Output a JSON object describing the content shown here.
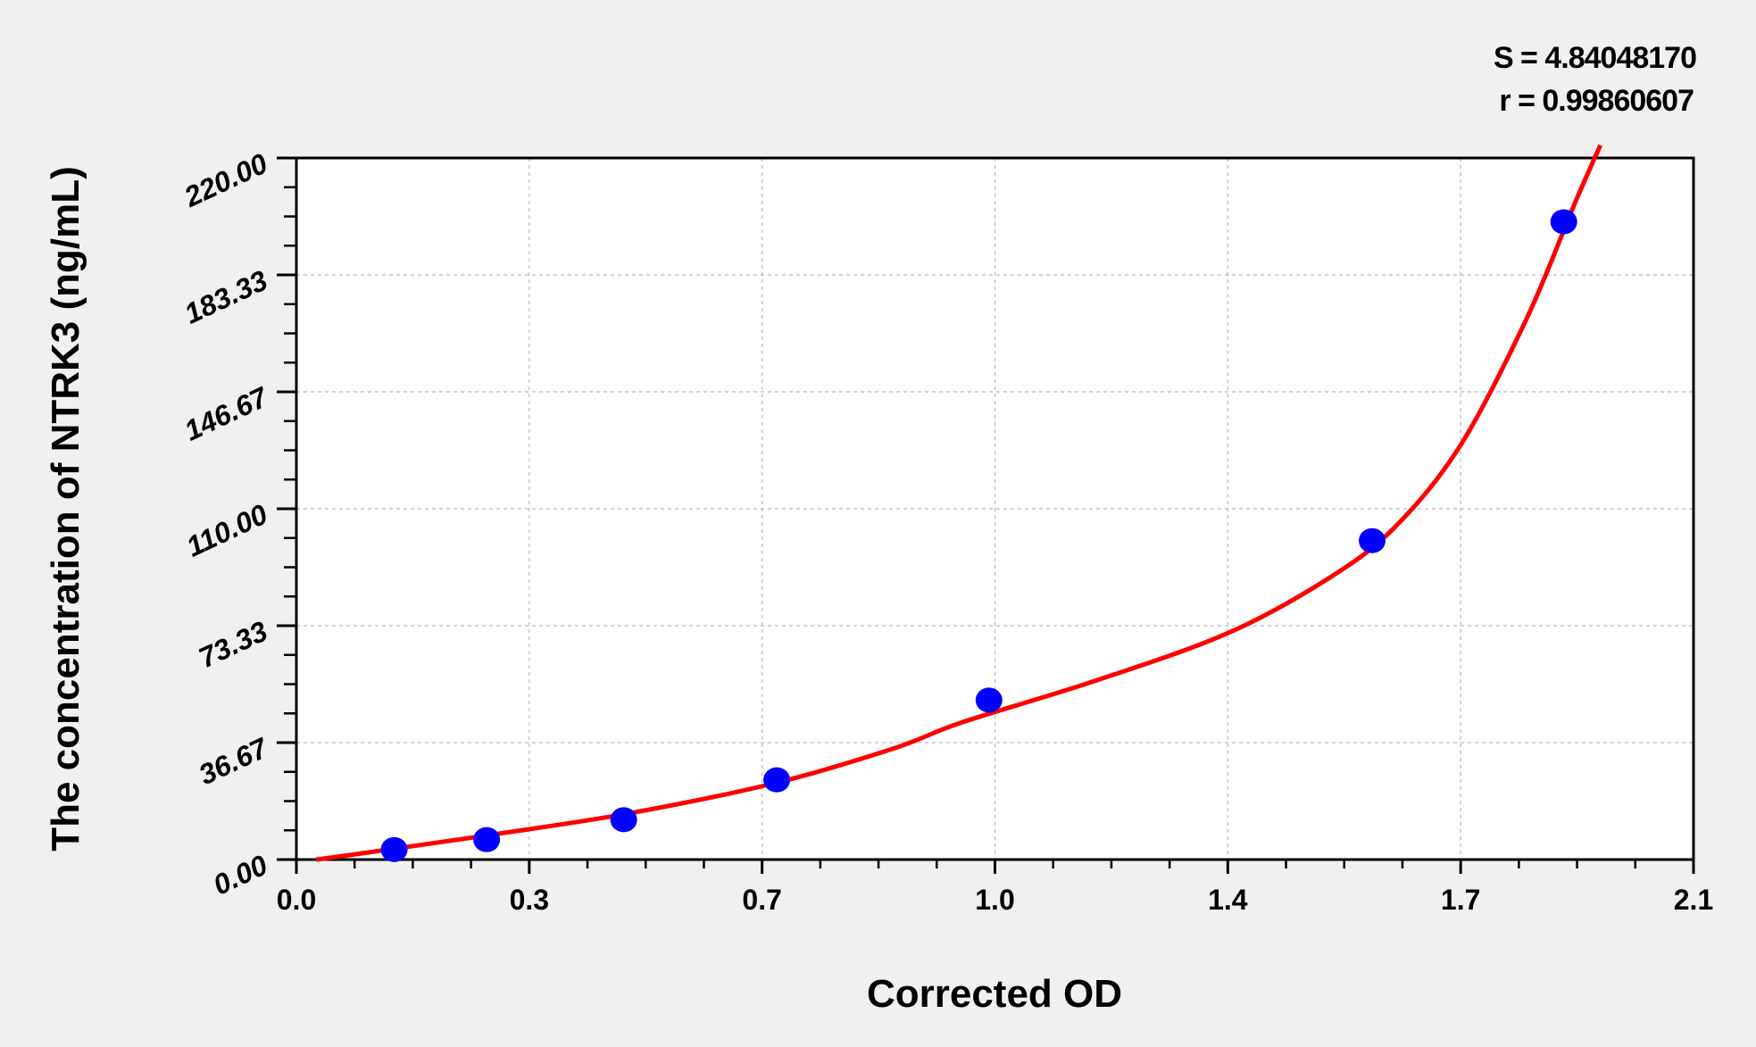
{
  "chart_data": {
    "type": "scatter",
    "xlabel": "Corrected OD",
    "ylabel": "The concentration of NTRK3 (ng/mL)",
    "xlim": [
      0,
      2.1
    ],
    "ylim": [
      0,
      220
    ],
    "x_ticks": [
      0.0,
      0.35,
      0.7,
      1.05,
      1.4,
      1.75,
      2.1
    ],
    "x_tick_labels": [
      "0.0",
      "0.3",
      "0.7",
      "1.0",
      "1.4",
      "1.7",
      "2.1"
    ],
    "y_ticks": [
      0,
      36.67,
      73.33,
      110,
      146.67,
      183.33,
      220
    ],
    "y_tick_labels": [
      "0.00",
      "36.67",
      "73.33",
      "110.00",
      "146.67",
      "183.33",
      "220.00"
    ],
    "grid": true,
    "points": {
      "x": [
        0.147,
        0.286,
        0.492,
        0.722,
        1.041,
        1.617,
        1.905
      ],
      "y": [
        3.13,
        6.25,
        12.5,
        25,
        50,
        100,
        200
      ],
      "color": "#0000ff"
    },
    "fit_curve": {
      "x": [
        0.03,
        0.1,
        0.3,
        0.5,
        0.72,
        0.9,
        1.0,
        1.2,
        1.4,
        1.55,
        1.65,
        1.75,
        1.85,
        1.92,
        1.96
      ],
      "y": [
        0,
        2,
        8,
        14.5,
        24,
        35,
        43,
        56,
        71,
        88,
        104,
        130,
        170,
        205,
        224
      ],
      "color": "#ff0000"
    },
    "annotations": {
      "s": "S = 4.84048170",
      "r": "r = 0.99860607"
    }
  }
}
